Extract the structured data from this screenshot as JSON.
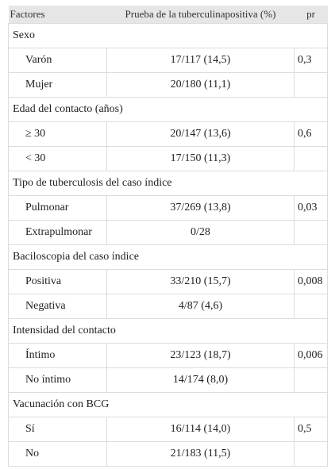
{
  "headers": {
    "factor": "Factores",
    "test": "Prueba de la tuberculinapositiva (%)",
    "p": "pr"
  },
  "groups": [
    {
      "title": "Sexo",
      "rows": [
        {
          "label": "Varón",
          "value": "17/117 (14,5)",
          "p": "0,3"
        },
        {
          "label": "Mujer",
          "value": "20/180 (11,1)",
          "p": ""
        }
      ]
    },
    {
      "title": "Edad del contacto (años)",
      "rows": [
        {
          "label": "≥ 30",
          "value": "20/147 (13,6)",
          "p": "0,6"
        },
        {
          "label": "< 30",
          "value": "17/150 (11,3)",
          "p": ""
        }
      ]
    },
    {
      "title": "Tipo de tuberculosis del caso índice",
      "rows": [
        {
          "label": "Pulmonar",
          "value": "37/269 (13,8)",
          "p": "0,03"
        },
        {
          "label": "Extrapulmonar",
          "value": "0/28",
          "p": ""
        }
      ]
    },
    {
      "title": "Baciloscopia del caso índice",
      "rows": [
        {
          "label": "Positiva",
          "value": "33/210 (15,7)",
          "p": "0,008"
        },
        {
          "label": "Negativa",
          "value": "4/87 (4,6)",
          "p": ""
        }
      ]
    },
    {
      "title": "Intensidad del contacto",
      "rows": [
        {
          "label": "Íntimo",
          "value": "23/123 (18,7)",
          "p": "0,006"
        },
        {
          "label": "No íntimo",
          "value": "14/174 (8,0)",
          "p": ""
        }
      ]
    },
    {
      "title": "Vacunación con BCG",
      "rows": [
        {
          "label": "Sí",
          "value": "16/114 (14,0)",
          "p": "0,5"
        },
        {
          "label": "No",
          "value": "21/183 (11,5)",
          "p": ""
        }
      ]
    }
  ]
}
